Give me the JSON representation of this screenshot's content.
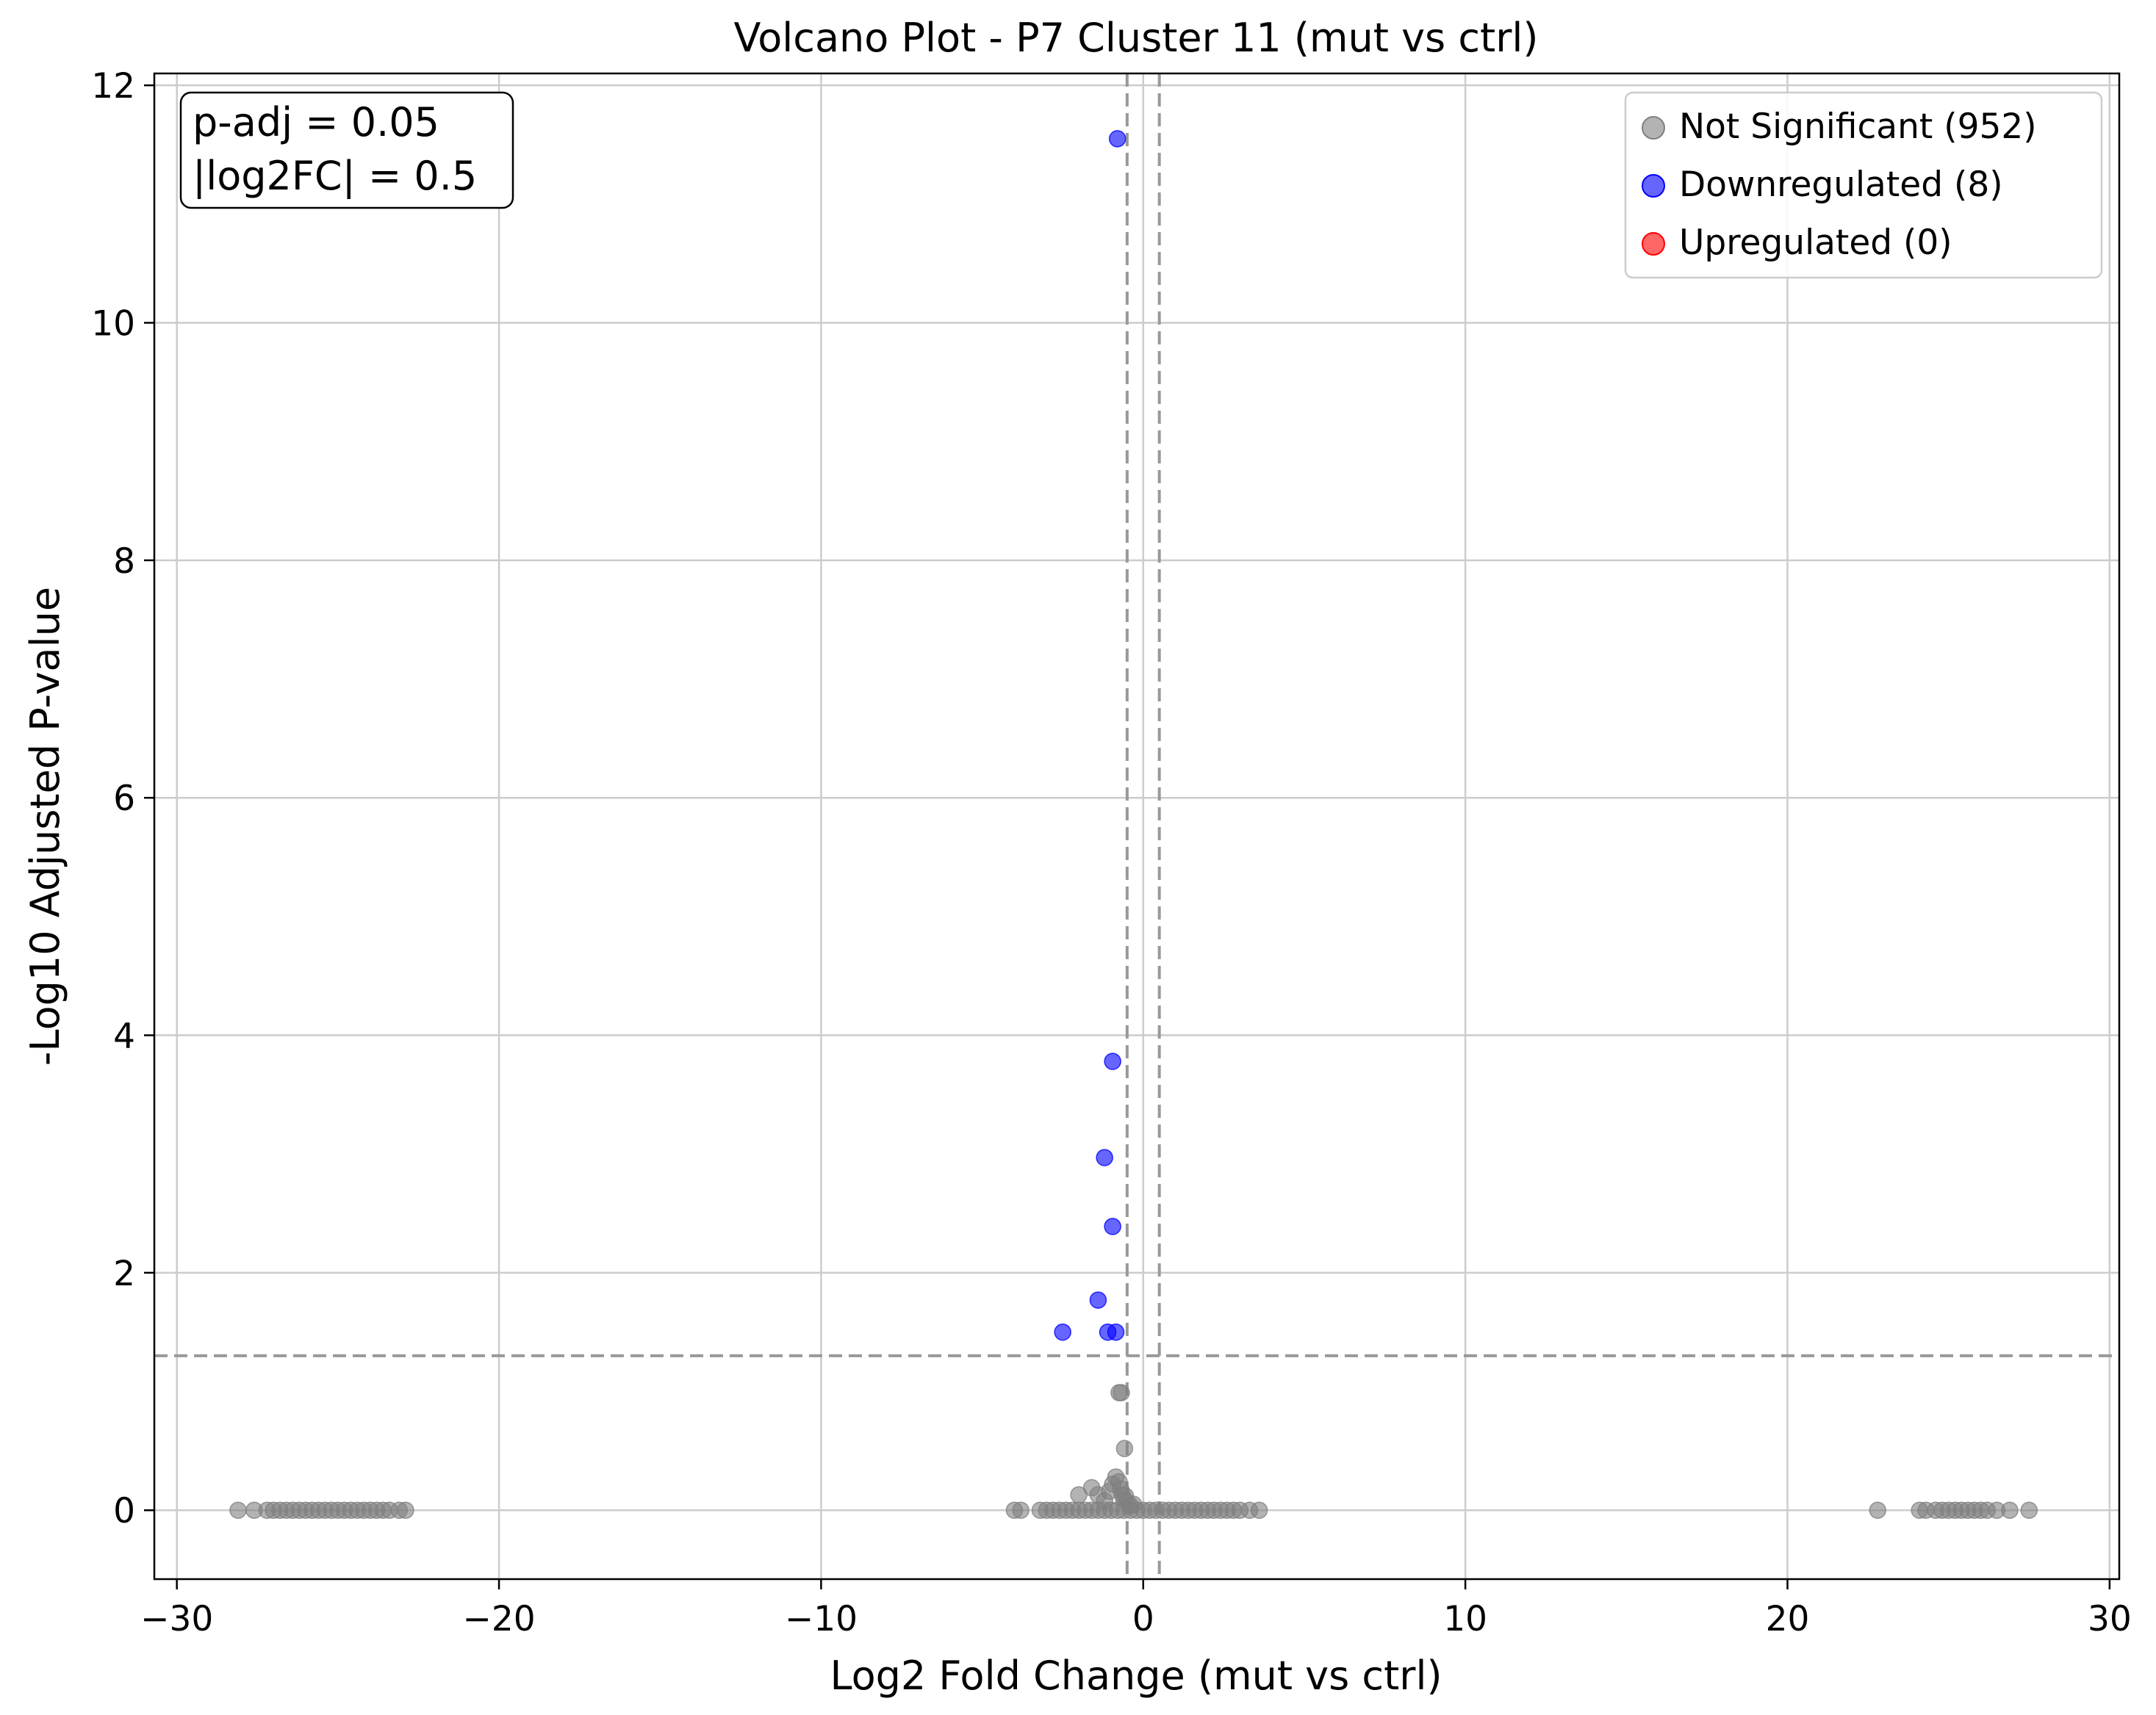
{
  "chart_data": {
    "type": "scatter",
    "title": "Volcano Plot - P7 Cluster 11 (mut vs ctrl)",
    "xlabel": "Log2 Fold Change (mut vs ctrl)",
    "ylabel": "-Log10 Adjusted P-value",
    "xlim": [
      -30.7,
      30.3
    ],
    "ylim": [
      -0.58,
      12.1
    ],
    "xticks": [
      -30,
      -20,
      -10,
      0,
      10,
      20,
      30
    ],
    "yticks": [
      0,
      2,
      4,
      6,
      8,
      10,
      12
    ],
    "xtick_labels": [
      "−30",
      "−20",
      "−10",
      "0",
      "10",
      "20",
      "30"
    ],
    "ytick_labels": [
      "0",
      "2",
      "4",
      "6",
      "8",
      "10",
      "12"
    ],
    "grid": true,
    "legend_position": "top-right",
    "annotation": {
      "position": "top-left",
      "lines": [
        "p-adj = 0.05",
        "|log2FC| = 0.5"
      ]
    },
    "thresholds": {
      "neg_log10_padj": 1.301,
      "log2fc_lower": -0.5,
      "log2fc_upper": 0.5
    },
    "series": [
      {
        "name": "Not Significant (952)",
        "color": "#808080",
        "points": [
          [
            -28.1,
            0
          ],
          [
            -27.6,
            0
          ],
          [
            -27.2,
            0
          ],
          [
            -27.0,
            0
          ],
          [
            -26.8,
            0
          ],
          [
            -26.6,
            0
          ],
          [
            -26.4,
            0
          ],
          [
            -26.2,
            0
          ],
          [
            -26.0,
            0
          ],
          [
            -25.8,
            0
          ],
          [
            -25.6,
            0
          ],
          [
            -25.4,
            0
          ],
          [
            -25.2,
            0
          ],
          [
            -25.0,
            0
          ],
          [
            -24.8,
            0
          ],
          [
            -24.6,
            0
          ],
          [
            -24.4,
            0
          ],
          [
            -24.2,
            0
          ],
          [
            -24.0,
            0
          ],
          [
            -23.8,
            0
          ],
          [
            -23.6,
            0
          ],
          [
            -23.4,
            0
          ],
          [
            -23.1,
            0
          ],
          [
            -22.9,
            0
          ],
          [
            -4.0,
            0
          ],
          [
            -3.8,
            0
          ],
          [
            -3.2,
            0
          ],
          [
            -3.0,
            0
          ],
          [
            -2.8,
            0
          ],
          [
            -2.6,
            0
          ],
          [
            -2.4,
            0
          ],
          [
            -2.2,
            0
          ],
          [
            -2.0,
            0
          ],
          [
            -1.8,
            0
          ],
          [
            -1.6,
            0
          ],
          [
            -1.4,
            0
          ],
          [
            -1.2,
            0
          ],
          [
            -1.0,
            0
          ],
          [
            -0.8,
            0
          ],
          [
            -0.6,
            0
          ],
          [
            -0.4,
            0
          ],
          [
            -0.2,
            0
          ],
          [
            0.0,
            0
          ],
          [
            0.2,
            0
          ],
          [
            0.4,
            0
          ],
          [
            0.6,
            0
          ],
          [
            0.8,
            0
          ],
          [
            1.0,
            0
          ],
          [
            1.2,
            0
          ],
          [
            1.4,
            0
          ],
          [
            1.6,
            0
          ],
          [
            1.8,
            0
          ],
          [
            2.0,
            0
          ],
          [
            2.2,
            0
          ],
          [
            2.4,
            0
          ],
          [
            2.6,
            0
          ],
          [
            2.8,
            0
          ],
          [
            3.0,
            0
          ],
          [
            3.3,
            0
          ],
          [
            3.6,
            0
          ],
          [
            -2.0,
            0.13
          ],
          [
            -1.6,
            0.19
          ],
          [
            -1.4,
            0.13
          ],
          [
            -1.2,
            0.08
          ],
          [
            -1.05,
            0.16
          ],
          [
            -0.95,
            0.22
          ],
          [
            -0.85,
            0.28
          ],
          [
            -0.75,
            0.24
          ],
          [
            -0.7,
            0.18
          ],
          [
            -0.65,
            0.13
          ],
          [
            -0.6,
            0.09
          ],
          [
            -0.55,
            0.12
          ],
          [
            -0.5,
            0.07
          ],
          [
            -0.4,
            0.04
          ],
          [
            -0.3,
            0.05
          ],
          [
            -0.75,
            0.99
          ],
          [
            -0.68,
            0.99
          ],
          [
            -0.58,
            0.52
          ],
          [
            22.8,
            0
          ],
          [
            24.1,
            0
          ],
          [
            24.3,
            0
          ],
          [
            24.6,
            0
          ],
          [
            24.8,
            0
          ],
          [
            25.0,
            0
          ],
          [
            25.2,
            0
          ],
          [
            25.4,
            0
          ],
          [
            25.6,
            0
          ],
          [
            25.8,
            0
          ],
          [
            26.0,
            0
          ],
          [
            26.2,
            0
          ],
          [
            26.5,
            0
          ],
          [
            26.9,
            0
          ],
          [
            27.5,
            0
          ]
        ]
      },
      {
        "name": "Downregulated (8)",
        "color": "#0000ff",
        "points": [
          [
            -0.8,
            11.55
          ],
          [
            -0.95,
            3.78
          ],
          [
            -1.2,
            2.97
          ],
          [
            -0.95,
            2.39
          ],
          [
            -1.4,
            1.77
          ],
          [
            -2.5,
            1.5
          ],
          [
            -1.1,
            1.5
          ],
          [
            -0.85,
            1.5
          ]
        ]
      },
      {
        "name": "Upregulated (0)",
        "color": "#ff0000",
        "points": []
      }
    ]
  }
}
